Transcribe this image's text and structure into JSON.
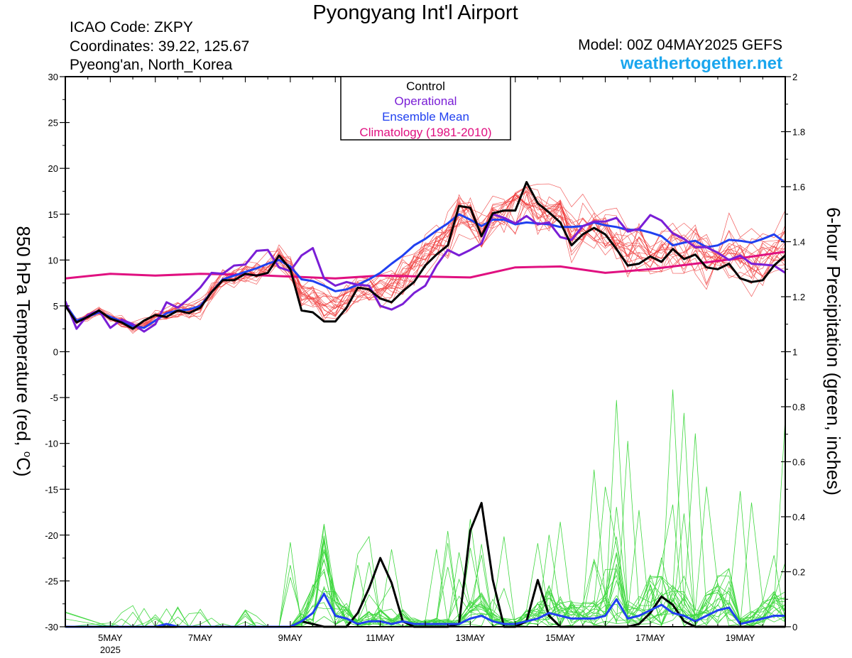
{
  "header": {
    "title": "Pyongyang Int'l Airport",
    "icao": "ICAO Code: ZKPY",
    "coordinates": "Coordinates: 39.22, 125.67",
    "region": "Pyeong'an, North_Korea",
    "model": "Model: 00Z 04MAY2025 GEFS",
    "site": "weathertogether.net"
  },
  "legend": {
    "items": [
      {
        "label": "Control",
        "color": "#000000"
      },
      {
        "label": "Operational",
        "color": "#7a1ed6"
      },
      {
        "label": "Ensemble Mean",
        "color": "#2040f0"
      },
      {
        "label": "Climatology (1981-2010)",
        "color": "#e01080"
      }
    ]
  },
  "colors": {
    "members_temp": "#f04040",
    "members_precip": "#40d840",
    "control": "#000000",
    "operational": "#7a1ed6",
    "mean": "#2040f0",
    "climatology": "#e01080"
  },
  "chart_data": {
    "type": "line",
    "title": "Pyongyang Int'l Airport",
    "left_axis": {
      "label": "850 hPa Temperature (red, °C)",
      "label_main": "850 hPa Temperature (red, ",
      "label_deg": "o",
      "label_unit": "C)",
      "ylim": [
        -30,
        30
      ],
      "ticks": [
        "30",
        "25",
        "20",
        "15",
        "10",
        "5",
        "0",
        "-5",
        "-10",
        "-15",
        "-20",
        "-25",
        "-30"
      ]
    },
    "right_axis": {
      "label": "6-hour Precipitation (green, inches)",
      "ylim": [
        0,
        2
      ],
      "ticks": [
        "2",
        "1.8",
        "1.6",
        "1.4",
        "1.2",
        "1",
        "0.8",
        "0.6",
        "0.4",
        "0.2",
        "0"
      ]
    },
    "x_axis": {
      "xlim": [
        "04MAY2025 00Z",
        "20MAY2025 00Z"
      ],
      "tick_labels": [
        {
          "day": 5,
          "label": "5MAY",
          "sublabel": "2025"
        },
        {
          "day": 7,
          "label": "7MAY",
          "sublabel": ""
        },
        {
          "day": 9,
          "label": "9MAY",
          "sublabel": ""
        },
        {
          "day": 11,
          "label": "11MAY",
          "sublabel": ""
        },
        {
          "day": 13,
          "label": "13MAY",
          "sublabel": ""
        },
        {
          "day": 15,
          "label": "15MAY",
          "sublabel": ""
        },
        {
          "day": 17,
          "label": "17MAY",
          "sublabel": ""
        },
        {
          "day": 19,
          "label": "19MAY",
          "sublabel": ""
        }
      ]
    },
    "temperature_series": [
      {
        "name": "Control",
        "axis": "left",
        "x": [
          4.0,
          4.25,
          4.5,
          4.75,
          5.0,
          5.25,
          5.5,
          5.75,
          6.0,
          6.25,
          6.5,
          6.75,
          7.0,
          7.25,
          7.5,
          7.75,
          8.0,
          8.25,
          8.5,
          8.75,
          9.0,
          9.25,
          9.5,
          9.75,
          10.0,
          10.25,
          10.5,
          10.75,
          11.0,
          11.25,
          11.5,
          11.75,
          12.0,
          12.25,
          12.5,
          12.75,
          13.0,
          13.25,
          13.5,
          13.75,
          14.0,
          14.25,
          14.5,
          14.75,
          15.0,
          15.25,
          15.5,
          15.75,
          16.0,
          16.25,
          16.5,
          16.75,
          17.0,
          17.25,
          17.5,
          17.75,
          18.0,
          18.25,
          18.5,
          18.75,
          19.0,
          19.25,
          19.5,
          19.75,
          20.0
        ],
        "y": [
          5.0,
          3.2,
          3.8,
          4.5,
          3.6,
          3.2,
          2.5,
          3.4,
          4.0,
          3.8,
          4.5,
          4.2,
          4.8,
          6.5,
          7.8,
          7.8,
          8.5,
          8.3,
          8.6,
          10.5,
          9.0,
          4.5,
          4.3,
          3.3,
          3.3,
          4.8,
          7.0,
          6.8,
          5.8,
          5.4,
          6.6,
          7.6,
          9.4,
          10.6,
          11.6,
          15.9,
          15.7,
          12.6,
          15.1,
          15.4,
          15.4,
          18.5,
          16.2,
          15.2,
          14.1,
          11.6,
          12.8,
          13.5,
          12.8,
          11.2,
          9.4,
          9.6,
          10.4,
          9.8,
          11.2,
          10.1,
          10.6,
          9.2,
          9.0,
          9.6,
          8.0,
          7.6,
          7.8,
          9.4,
          10.5
        ]
      },
      {
        "name": "Operational",
        "axis": "left",
        "x": [
          4.0,
          4.25,
          4.5,
          4.75,
          5.0,
          5.25,
          5.5,
          5.75,
          6.0,
          6.25,
          6.5,
          6.75,
          7.0,
          7.25,
          7.5,
          7.75,
          8.0,
          8.25,
          8.5,
          8.75,
          9.0,
          9.25,
          9.5,
          9.75,
          10.0,
          10.25,
          10.5,
          10.75,
          11.0,
          11.25,
          11.5,
          11.75,
          12.0,
          12.25,
          12.5,
          12.75,
          13.0,
          13.25,
          13.5,
          13.75,
          14.0,
          14.25,
          14.5,
          14.75,
          15.0,
          15.25,
          15.5,
          15.75,
          16.0,
          16.25,
          16.5,
          16.75,
          17.0,
          17.25,
          17.5,
          17.75,
          18.0,
          18.25,
          18.5,
          18.75,
          19.0,
          19.25,
          19.5,
          19.75,
          20.0
        ],
        "y": [
          5.5,
          2.5,
          4.0,
          4.5,
          2.6,
          3.5,
          3.0,
          2.2,
          3.0,
          5.4,
          4.8,
          5.8,
          7.0,
          8.6,
          8.5,
          9.4,
          9.5,
          11.0,
          11.1,
          9.2,
          8.8,
          10.5,
          11.3,
          8.0,
          7.2,
          7.6,
          7.3,
          7.2,
          5.0,
          4.6,
          5.2,
          6.4,
          7.2,
          9.4,
          11.1,
          10.5,
          11.1,
          11.8,
          15.0,
          14.6,
          14.0,
          14.8,
          13.9,
          14.1,
          12.5,
          12.2,
          13.7,
          14.2,
          14.2,
          14.6,
          13.1,
          13.4,
          14.9,
          14.3,
          12.9,
          12.3,
          11.4,
          11.4,
          10.8,
          10.0,
          10.5,
          9.6,
          9.5,
          9.4,
          8.6
        ]
      },
      {
        "name": "Ensemble Mean",
        "axis": "left",
        "x": [
          4.0,
          4.25,
          4.5,
          4.75,
          5.0,
          5.25,
          5.5,
          5.75,
          6.0,
          6.25,
          6.5,
          6.75,
          7.0,
          7.25,
          7.5,
          7.75,
          8.0,
          8.25,
          8.5,
          8.75,
          9.0,
          9.25,
          9.5,
          9.75,
          10.0,
          10.25,
          10.5,
          10.75,
          11.0,
          11.25,
          11.5,
          11.75,
          12.0,
          12.25,
          12.5,
          12.75,
          13.0,
          13.25,
          13.5,
          13.75,
          14.0,
          14.25,
          14.5,
          14.75,
          15.0,
          15.25,
          15.5,
          15.75,
          16.0,
          16.25,
          16.5,
          16.75,
          17.0,
          17.25,
          17.5,
          17.75,
          18.0,
          18.25,
          18.5,
          18.75,
          19.0,
          19.25,
          19.5,
          19.75,
          20.0
        ],
        "y": [
          5.2,
          3.4,
          3.8,
          4.3,
          3.8,
          3.3,
          2.8,
          2.6,
          3.4,
          4.2,
          4.5,
          4.6,
          5.0,
          6.5,
          7.9,
          8.3,
          8.7,
          9.1,
          9.6,
          10.0,
          9.3,
          7.9,
          7.7,
          7.2,
          6.6,
          6.8,
          7.3,
          7.9,
          8.6,
          9.6,
          10.5,
          11.6,
          12.3,
          13.2,
          14.0,
          15.0,
          14.4,
          13.7,
          14.4,
          14.4,
          13.9,
          14.1,
          14.0,
          13.9,
          13.6,
          13.6,
          13.7,
          14.1,
          13.8,
          13.6,
          13.3,
          13.3,
          13.0,
          12.6,
          11.6,
          11.9,
          12.1,
          11.4,
          11.6,
          12.2,
          12.1,
          11.9,
          12.3,
          12.8,
          11.9
        ]
      },
      {
        "name": "Climatology (1981-2010)",
        "axis": "left",
        "x": [
          4.0,
          5.0,
          6.0,
          7.0,
          8.0,
          9.0,
          10.0,
          11.0,
          12.0,
          13.0,
          14.0,
          15.0,
          16.0,
          17.0,
          18.0,
          19.0,
          20.0
        ],
        "y": [
          8.0,
          8.5,
          8.3,
          8.5,
          8.4,
          8.2,
          8.0,
          8.3,
          8.2,
          8.1,
          9.2,
          9.3,
          8.6,
          9.0,
          9.6,
          10.2,
          10.9
        ]
      }
    ],
    "precipitation_series": [
      {
        "name": "Control",
        "axis": "right",
        "x": [
          4.0,
          8.5,
          8.75,
          9.0,
          9.25,
          9.5,
          9.75,
          10.0,
          10.25,
          10.5,
          10.75,
          11.0,
          11.25,
          11.5,
          11.75,
          12.0,
          12.25,
          12.5,
          12.75,
          13.0,
          13.25,
          13.5,
          13.75,
          14.0,
          14.25,
          14.5,
          14.75,
          15.0,
          15.25,
          15.5,
          15.75,
          16.0,
          16.25,
          16.5,
          16.75,
          17.0,
          17.25,
          17.5,
          17.75,
          18.0,
          20.0
        ],
        "y": [
          0,
          0,
          0,
          0,
          0.02,
          0.01,
          0,
          0,
          0,
          0.05,
          0.14,
          0.25,
          0.16,
          0.02,
          0,
          0,
          0,
          0,
          0.01,
          0.35,
          0.45,
          0.17,
          0,
          0,
          0.02,
          0.17,
          0.04,
          0,
          0,
          0,
          0,
          0,
          0,
          0,
          0.01,
          0.05,
          0.11,
          0.08,
          0.02,
          0,
          0
        ]
      },
      {
        "name": "Ensemble Mean",
        "axis": "right",
        "x": [
          4.0,
          5.0,
          5.25,
          5.5,
          5.75,
          6.0,
          6.25,
          6.5,
          6.75,
          7.0,
          7.25,
          7.5,
          7.75,
          8.0,
          8.25,
          8.5,
          8.75,
          9.0,
          9.25,
          9.5,
          9.75,
          10.0,
          10.25,
          10.5,
          10.75,
          11.0,
          11.25,
          11.5,
          11.75,
          12.0,
          12.25,
          12.5,
          12.75,
          13.0,
          13.25,
          13.5,
          13.75,
          14.0,
          14.25,
          14.5,
          14.75,
          15.0,
          15.25,
          15.5,
          15.75,
          16.0,
          16.25,
          16.5,
          16.75,
          17.0,
          17.25,
          17.5,
          17.75,
          18.0,
          18.25,
          18.5,
          18.75,
          19.0,
          19.25,
          19.5,
          19.75,
          20.0
        ],
        "y": [
          0,
          0,
          0,
          0,
          0,
          0,
          0.01,
          0,
          0,
          0,
          0,
          0,
          0,
          0,
          0,
          0,
          0,
          0,
          0.02,
          0.05,
          0.12,
          0.04,
          0.03,
          0.01,
          0.02,
          0.02,
          0.01,
          0.02,
          0.01,
          0.01,
          0.01,
          0.01,
          0.01,
          0.03,
          0.04,
          0.02,
          0.01,
          0.01,
          0.02,
          0.03,
          0.05,
          0.04,
          0.03,
          0.03,
          0.03,
          0.04,
          0.1,
          0.03,
          0.04,
          0.06,
          0.08,
          0.05,
          0.04,
          0.02,
          0.04,
          0.06,
          0.07,
          0.01,
          0.02,
          0.03,
          0.04,
          0.04
        ]
      }
    ]
  }
}
